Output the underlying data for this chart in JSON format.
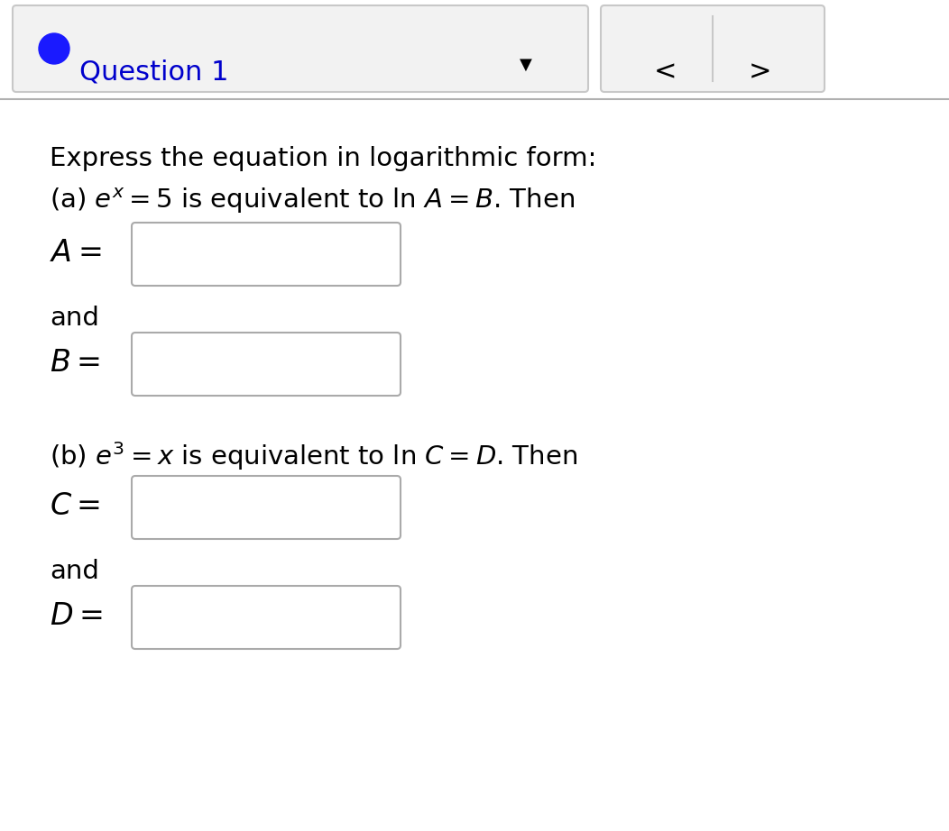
{
  "background_color": "#ffffff",
  "header_bg": "#f2f2f2",
  "header_border": "#c8c8c8",
  "header_text": "Question 1",
  "header_text_color": "#0000cc",
  "circle_color": "#1a1aff",
  "nav_left": "<",
  "nav_right": ">",
  "nav_dropdown": "▼",
  "divider_color": "#b0b0b0",
  "line1": "Express the equation in logarithmic form:",
  "line2a_part1": "(a) $e^{x}$",
  "line2a_part2": " $= 5$ is equivalent to $\\ln\\, A = B$. Then",
  "line2a": "(a) $e^{x} = 5$ is equivalent to $\\ln\\, A = B$. Then",
  "label_A": "$A =$",
  "label_and1": "and",
  "label_B": "$B =$",
  "line2b": "(b) $e^{3} = x$ is equivalent to $\\ln\\, C = D$. Then",
  "label_C": "$C =$",
  "label_and2": "and",
  "label_D": "$D =$",
  "box_border": "#aaaaaa",
  "text_color": "#000000",
  "fig_width": 10.52,
  "fig_height": 9.22,
  "dpi": 100
}
